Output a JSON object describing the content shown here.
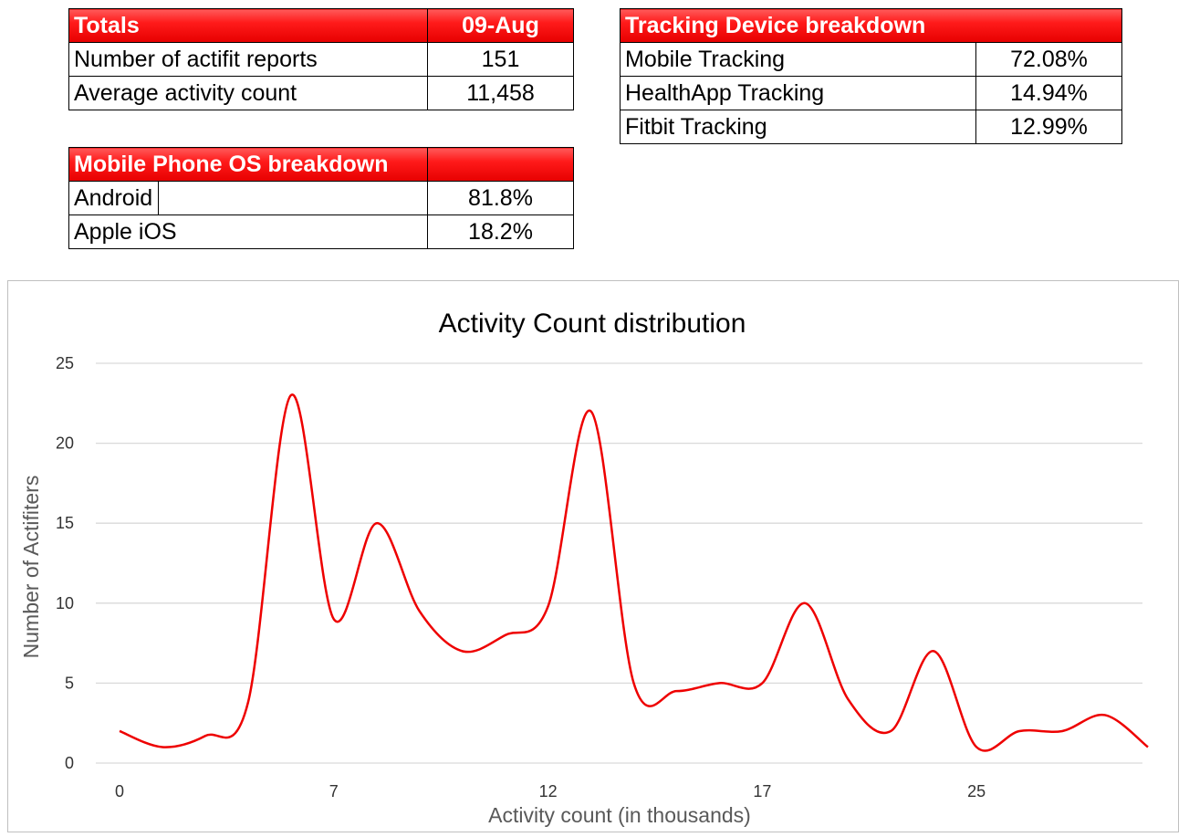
{
  "totals": {
    "title": "Totals",
    "date": "09-Aug",
    "rows": [
      {
        "label": "Number of actifit reports",
        "value": "151"
      },
      {
        "label": "Average activity count",
        "value": "11,458"
      }
    ]
  },
  "tracking": {
    "title": "Tracking Device breakdown",
    "rows": [
      {
        "label": "Mobile Tracking",
        "value": "72.08%"
      },
      {
        "label": "HealthApp Tracking",
        "value": "14.94%"
      },
      {
        "label": "Fitbit Tracking",
        "value": "12.99%"
      }
    ]
  },
  "os": {
    "title": "Mobile Phone OS breakdown",
    "rows": [
      {
        "label": "Android",
        "value": "81.8%"
      },
      {
        "label": "Apple iOS",
        "value": "18.2%"
      }
    ]
  },
  "colors": {
    "header_red": "#ff1a1a",
    "line_red": "#ee0000"
  },
  "chart_data": {
    "type": "line",
    "title": "Activity Count distribution",
    "xlabel": "Activity count (in thousands)",
    "ylabel": "Number of Actifiters",
    "x_tick_labels": [
      {
        "index": 0,
        "label": "0"
      },
      {
        "index": 5,
        "label": "7"
      },
      {
        "index": 10,
        "label": "12"
      },
      {
        "index": 15,
        "label": "17"
      },
      {
        "index": 20,
        "label": "25"
      }
    ],
    "yticks": [
      0,
      5,
      10,
      15,
      20,
      25
    ],
    "ylim": [
      0,
      25
    ],
    "smoothed": true,
    "grid": true,
    "series": [
      {
        "values": [
          2,
          1,
          1.7,
          3.8,
          23,
          9,
          15,
          9.5,
          7,
          8,
          9.8,
          22,
          5,
          4.5,
          5,
          5,
          10,
          4,
          2,
          7,
          1,
          2,
          2,
          3,
          1
        ]
      }
    ]
  }
}
